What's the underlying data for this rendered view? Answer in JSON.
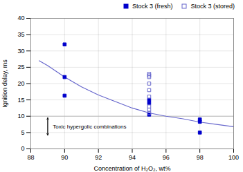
{
  "chart_data": {
    "type": "scatter",
    "xlabel": "Concentration of H₂O₂, wt%",
    "ylabel": "Ignition delay, ms",
    "xlim": [
      88,
      100
    ],
    "ylim": [
      0,
      40
    ],
    "xticks": [
      88,
      90,
      92,
      94,
      96,
      98,
      100
    ],
    "yticks": [
      0,
      5,
      10,
      15,
      20,
      25,
      30,
      35,
      40
    ],
    "grid": true,
    "legend": "upper right",
    "series": [
      {
        "type": "line",
        "color": "#6666cc",
        "line_style": "solid",
        "x": [
          88.5,
          89,
          90,
          91,
          92,
          93,
          94,
          95,
          96,
          97,
          98,
          99,
          100
        ],
        "values": [
          27,
          25.5,
          22,
          19,
          16.5,
          14.5,
          12.5,
          11,
          10,
          9.2,
          8.2,
          7.5,
          6.8
        ]
      },
      {
        "name": "Stock 3 (fresh)",
        "type": "scatter",
        "marker": "square",
        "color": "#0000cc",
        "x": [
          90,
          90,
          90,
          95,
          95,
          95,
          98,
          98,
          98
        ],
        "values": [
          32,
          22,
          16.3,
          15,
          14,
          10.5,
          9,
          8.3,
          5
        ]
      },
      {
        "name": "Stock 3 (stored)",
        "type": "scatter",
        "marker": "square-open",
        "color": "#6666cc",
        "x": [
          95,
          95,
          95,
          95,
          95,
          95,
          95,
          95,
          95
        ],
        "values": [
          23,
          22.5,
          22,
          20,
          18,
          16,
          13,
          12,
          11
        ]
      }
    ],
    "reference_lines": [
      {
        "y": 10,
        "color": "#bbbbbb"
      }
    ],
    "arrows": [
      {
        "x": 89.0,
        "y_top": 9.5,
        "y_bottom": 4.2
      }
    ],
    "annotations": [
      {
        "text": "Toxic hypergolic combinations",
        "x": 89.3,
        "y": 6.8
      }
    ]
  }
}
